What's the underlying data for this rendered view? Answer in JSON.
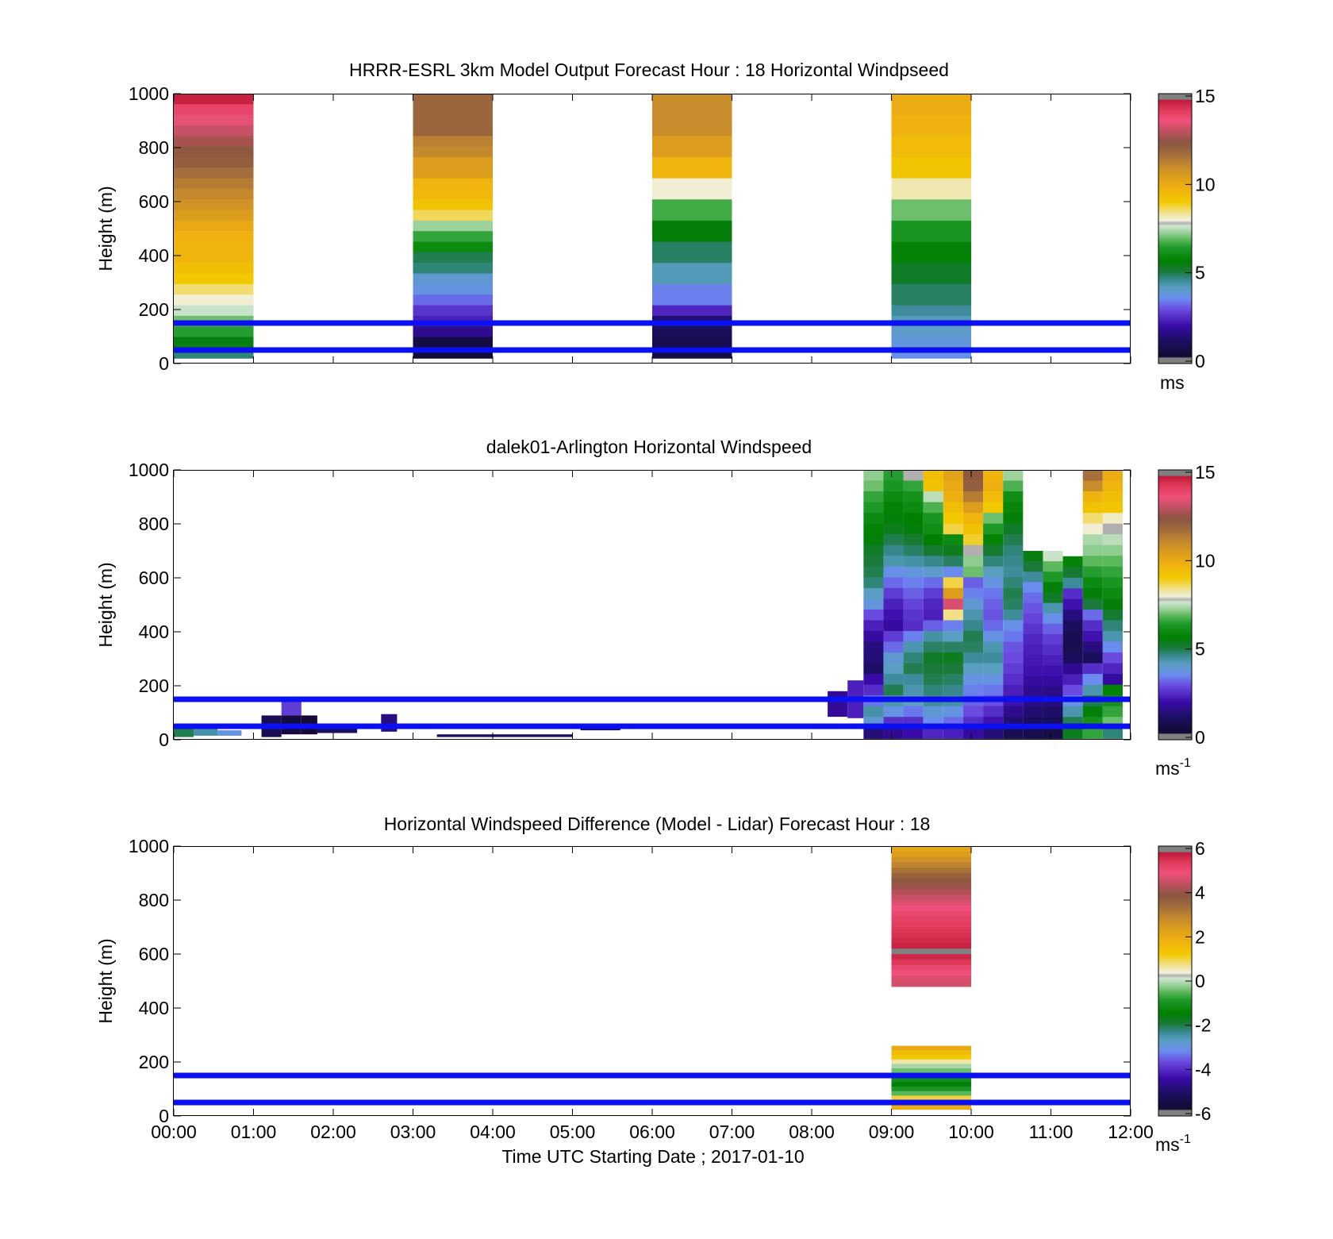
{
  "figure": {
    "xlabel": "Time UTC  Starting Date ; 2017-01-10",
    "x_tick_labels": [
      "00:00",
      "01:00",
      "02:00",
      "03:00",
      "04:00",
      "05:00",
      "06:00",
      "07:00",
      "08:00",
      "09:00",
      "10:00",
      "11:00",
      "12:00"
    ],
    "overlay_line_color": "#0a10f0"
  },
  "chart_data": [
    {
      "type": "heatmap",
      "title": "HRRR-ESRL 3km Model Output   Forecast Hour : 18 Horizontal Windpseed",
      "ylabel": "Height (m)",
      "xlim_hours": [
        0,
        12
      ],
      "ylim": [
        0,
        1000
      ],
      "y_ticks": [
        "0",
        "200",
        "400",
        "600",
        "800",
        "1000"
      ],
      "reference_lines_m": [
        50,
        150
      ],
      "colorbar": {
        "min": 0,
        "max": 15,
        "ticks": [
          "0",
          "5",
          "10",
          "15"
        ],
        "unit": "ms",
        "unit_sup": ""
      },
      "columns": [
        {
          "start_hour": 0,
          "end_hour": 1,
          "z_top": 1000,
          "z_bottom": 20,
          "values": [
            14.5,
            13.8,
            13.4,
            13.0,
            12.6,
            12.2,
            12.0,
            11.6,
            11.3,
            11.0,
            10.7,
            10.4,
            10.0,
            9.7,
            9.6,
            9.6,
            9.3,
            9.0,
            8.5,
            8.0,
            7.6,
            7.0,
            6.5,
            5.5,
            4.8
          ]
        },
        {
          "start_hour": 3,
          "end_hour": 4,
          "z_top": 1000,
          "z_bottom": 20,
          "values": [
            11.8,
            11.8,
            11.8,
            11.8,
            11.2,
            11.0,
            10.4,
            10.4,
            9.6,
            9.5,
            9.2,
            8.6,
            7.3,
            6.6,
            6.0,
            5.0,
            4.8,
            4.0,
            3.8,
            3.3,
            2.7,
            2.4,
            1.8,
            0.7,
            0.4
          ]
        },
        {
          "start_hour": 6,
          "end_hour": 7,
          "z_top": 1000,
          "z_bottom": 20,
          "values": [
            10.9,
            10.9,
            10.9,
            10.9,
            10.4,
            10.4,
            9.6,
            9.6,
            8.0,
            8.0,
            6.7,
            6.7,
            5.6,
            5.6,
            4.9,
            4.9,
            4.3,
            4.3,
            3.5,
            3.5,
            2.5,
            1.4,
            1.1,
            0.9,
            0.7
          ]
        },
        {
          "start_hour": 9,
          "end_hour": 10,
          "z_top": 1000,
          "z_bottom": 20,
          "values": [
            9.9,
            9.9,
            9.7,
            9.7,
            9.4,
            9.4,
            9.1,
            9.1,
            8.2,
            8.2,
            7.0,
            7.0,
            6.3,
            6.3,
            5.8,
            5.8,
            5.3,
            5.3,
            4.9,
            4.9,
            4.6,
            4.3,
            4.1,
            3.9,
            3.7
          ]
        }
      ]
    },
    {
      "type": "heatmap",
      "title": "dalek01-Arlington  Horizontal Windspeed",
      "ylabel": "Height (m)",
      "xlim_hours": [
        0,
        12
      ],
      "ylim": [
        0,
        1000
      ],
      "y_ticks": [
        "0",
        "200",
        "400",
        "600",
        "800",
        "1000"
      ],
      "reference_lines_m": [
        50,
        150
      ],
      "colorbar": {
        "min": 0,
        "max": 15,
        "ticks": [
          "0",
          "5",
          "10",
          "15"
        ],
        "unit": "ms",
        "unit_sup": "-1"
      },
      "bin_width_hours": 0.25,
      "bin_height_m": 20,
      "data_summary": "Sparse low-level returns (0-160 m, ~0-2 m/s) from 00:00-05:30; dense profiles 0-1000 m from ~08:40-12:00 with speeds mostly 2-7 m/s, occasional 9-12 m/s aloft.",
      "patches": [
        {
          "t0": 0.0,
          "t1": 0.25,
          "z0": 10,
          "z1": 50,
          "v": 5.0
        },
        {
          "t0": 0.25,
          "t1": 0.55,
          "z0": 15,
          "z1": 40,
          "v": 4.5
        },
        {
          "t0": 0.55,
          "t1": 0.85,
          "z0": 15,
          "z1": 35,
          "v": 3.8
        },
        {
          "t0": 1.1,
          "t1": 1.35,
          "z0": 10,
          "z1": 90,
          "v": 1.0
        },
        {
          "t0": 1.35,
          "t1": 1.6,
          "z0": 90,
          "z1": 160,
          "v": 2.8
        },
        {
          "t0": 1.35,
          "t1": 1.6,
          "z0": 20,
          "z1": 90,
          "v": 0.6
        },
        {
          "t0": 1.6,
          "t1": 1.8,
          "z0": 20,
          "z1": 90,
          "v": 0.4
        },
        {
          "t0": 1.8,
          "t1": 2.3,
          "z0": 25,
          "z1": 40,
          "v": 1.2
        },
        {
          "t0": 2.6,
          "t1": 2.8,
          "z0": 30,
          "z1": 95,
          "v": 1.6
        },
        {
          "t0": 3.3,
          "t1": 5.0,
          "z0": 10,
          "z1": 20,
          "v": 1.3
        },
        {
          "t0": 5.1,
          "t1": 5.6,
          "z0": 35,
          "z1": 55,
          "v": 1.1
        },
        {
          "t0": 8.2,
          "t1": 8.45,
          "z0": 85,
          "z1": 180,
          "v": 1.9
        },
        {
          "t0": 8.45,
          "t1": 8.65,
          "z0": 80,
          "z1": 220,
          "v": 2.4
        }
      ],
      "columns": [
        {
          "start_hour": 8.65,
          "end_hour": 8.9,
          "z_top": 1000,
          "z_bottom": 5,
          "values": [
            7.2,
            7.0,
            6.6,
            6.4,
            6.0,
            5.8,
            5.6,
            5.3,
            5.1,
            5.0,
            4.8,
            4.2,
            3.9,
            3.0,
            2.4,
            2.0,
            1.6,
            1.5,
            1.3,
            2.1,
            2.6,
            3.4,
            4.5,
            4.0,
            1.5
          ]
        },
        {
          "start_hour": 8.9,
          "end_hour": 9.15,
          "z_top": 1000,
          "z_bottom": 5,
          "values": [
            6.5,
            6.3,
            6.0,
            5.8,
            5.6,
            5.4,
            5.0,
            4.7,
            4.4,
            3.7,
            3.3,
            2.8,
            2.4,
            2.2,
            2.0,
            2.8,
            3.3,
            4.0,
            4.2,
            4.6,
            5.0,
            4.4,
            3.8,
            2.6,
            1.8
          ]
        },
        {
          "start_hour": 9.15,
          "end_hour": 9.4,
          "z_top": 1000,
          "z_bottom": 5,
          "values": [
            7.8,
            6.6,
            6.2,
            6.0,
            5.7,
            5.6,
            5.2,
            4.9,
            4.5,
            3.9,
            3.5,
            3.2,
            2.9,
            2.7,
            2.6,
            3.5,
            4.4,
            4.8,
            5.0,
            4.6,
            4.4,
            4.2,
            3.4,
            2.6,
            2.1
          ]
        },
        {
          "start_hour": 9.4,
          "end_hour": 9.65,
          "z_top": 1000,
          "z_bottom": 5,
          "values": [
            9.3,
            9.2,
            7.5,
            6.8,
            6.3,
            6.1,
            5.7,
            5.2,
            4.7,
            4.1,
            3.3,
            2.8,
            2.5,
            2.4,
            3.2,
            4.5,
            4.9,
            5.3,
            5.1,
            5.0,
            4.8,
            4.6,
            4.0,
            3.6,
            2.5
          ]
        },
        {
          "start_hour": 9.65,
          "end_hour": 9.9,
          "z_top": 1000,
          "z_bottom": 5,
          "values": [
            10.2,
            10.0,
            9.8,
            9.3,
            9.0,
            8.7,
            6.0,
            5.4,
            4.9,
            3.6,
            8.7,
            10.4,
            13.2,
            8.4,
            3.5,
            4.2,
            4.9,
            5.4,
            5.1,
            4.9,
            4.7,
            4.5,
            3.8,
            3.3,
            2.4
          ]
        },
        {
          "start_hour": 9.9,
          "end_hour": 10.15,
          "z_top": 1000,
          "z_bottom": 5,
          "values": [
            12.2,
            12.0,
            11.3,
            10.4,
            9.6,
            9.2,
            8.8,
            7.8,
            7.2,
            7.0,
            3.2,
            3.5,
            4.0,
            4.4,
            4.7,
            5.0,
            4.9,
            4.6,
            4.2,
            3.8,
            3.5,
            3.2,
            3.0,
            2.6,
            2.0
          ]
        },
        {
          "start_hour": 10.15,
          "end_hour": 10.4,
          "z_top": 1000,
          "z_bottom": 5,
          "values": [
            9.6,
            9.8,
            9.4,
            9.0,
            7.0,
            6.4,
            5.8,
            5.2,
            4.8,
            4.2,
            3.8,
            3.4,
            3.2,
            3.1,
            3.3,
            3.8,
            4.4,
            4.6,
            4.2,
            3.8,
            3.4,
            3.0,
            2.6,
            2.2,
            1.5
          ]
        },
        {
          "start_hour": 10.4,
          "end_hour": 10.65,
          "z_top": 1000,
          "z_bottom": 5,
          "values": [
            7.3,
            6.8,
            6.1,
            5.9,
            5.6,
            5.3,
            5.0,
            4.8,
            4.7,
            4.6,
            4.8,
            5.0,
            4.9,
            4.6,
            3.7,
            3.4,
            3.1,
            3.0,
            2.8,
            2.6,
            2.4,
            2.2,
            1.8,
            1.4,
            1.0
          ]
        },
        {
          "start_hour": 10.65,
          "end_hour": 10.9,
          "z_top": 700,
          "z_bottom": 5,
          "values": [
            5.5,
            5.1,
            4.6,
            3.6,
            3.3,
            3.1,
            2.9,
            2.7,
            2.5,
            2.4,
            2.3,
            2.2,
            2.0,
            1.8,
            1.6,
            1.4,
            1.1,
            0.9
          ]
        },
        {
          "start_hour": 10.9,
          "end_hour": 11.15,
          "z_top": 700,
          "z_bottom": 5,
          "values": [
            7.6,
            6.9,
            6.4,
            5.6,
            5.3,
            4.4,
            3.7,
            3.2,
            2.8,
            2.6,
            2.4,
            2.2,
            2.0,
            1.7,
            1.5,
            1.3,
            1.1,
            0.8
          ]
        },
        {
          "start_hour": 11.15,
          "end_hour": 11.4,
          "z_top": 680,
          "z_bottom": 5,
          "values": [
            5.8,
            5.2,
            4.6,
            2.6,
            2.2,
            1.6,
            1.2,
            1.0,
            0.9,
            1.2,
            1.8,
            2.4,
            3.0,
            3.8,
            4.4,
            5.0,
            5.4
          ]
        },
        {
          "start_hour": 11.4,
          "end_hour": 11.65,
          "z_top": 1000,
          "z_bottom": 5,
          "values": [
            11.6,
            10.9,
            9.7,
            9.2,
            8.5,
            8.0,
            7.4,
            7.2,
            6.9,
            6.5,
            6.0,
            5.6,
            5.1,
            3.3,
            2.6,
            2.2,
            1.6,
            1.1,
            2.6,
            3.6,
            4.4,
            5.0,
            5.6,
            6.2,
            6.6
          ]
        },
        {
          "start_hour": 11.65,
          "end_hour": 11.9,
          "z_top": 1000,
          "z_bottom": 5,
          "values": [
            9.9,
            9.6,
            9.3,
            9.1,
            8.1,
            7.8,
            7.5,
            7.2,
            6.9,
            6.6,
            6.3,
            6.0,
            5.6,
            5.2,
            4.8,
            4.4,
            3.6,
            3.0,
            2.5,
            2.0,
            5.8,
            6.2,
            6.6,
            7.0,
            4.8
          ]
        }
      ]
    },
    {
      "type": "heatmap",
      "title": "Horizontal Windspeed Difference (Model - Lidar) Forecast Hour : 18",
      "ylabel": "Height (m)",
      "xlim_hours": [
        0,
        12
      ],
      "ylim": [
        0,
        1000
      ],
      "y_ticks": [
        "0",
        "200",
        "400",
        "600",
        "800",
        "1000"
      ],
      "reference_lines_m": [
        50,
        150
      ],
      "colorbar": {
        "min": -6,
        "max": 6,
        "ticks": [
          "-6",
          "-4",
          "-2",
          "0",
          "2",
          "4",
          "6"
        ],
        "unit": "ms",
        "unit_sup": "-1"
      },
      "columns": [
        {
          "start_hour": 9,
          "end_hour": 10,
          "z_top": 1000,
          "z_bottom": 480,
          "values": [
            2.1,
            2.3,
            2.6,
            2.9,
            3.2,
            3.5,
            3.8,
            4.0,
            4.2,
            4.4,
            4.6,
            4.8,
            5.0,
            5.1,
            5.2,
            5.3,
            5.4,
            5.5,
            5.6,
            5.8,
            5.5,
            5.3,
            5.0,
            4.8,
            4.6,
            4.5
          ]
        },
        {
          "start_hour": 9,
          "end_hour": 10,
          "z_top": 260,
          "z_bottom": 25,
          "values": [
            2.0,
            1.5,
            1.2,
            0.6,
            -0.1,
            -0.4,
            -0.8,
            -1.1,
            -1.5,
            -0.9,
            -0.5,
            1.0,
            1.6,
            1.9
          ]
        }
      ]
    }
  ]
}
